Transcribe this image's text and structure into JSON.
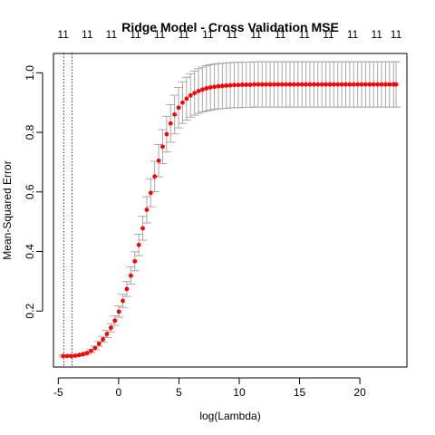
{
  "chart_data": {
    "type": "scatter",
    "title": "Ridge Model - Cross Validation MSE",
    "xlabel": "log(Lambda)",
    "ylabel": "Mean-Squared Error",
    "xlim": [
      -5.4,
      23.9
    ],
    "ylim": [
      0.012,
      1.065
    ],
    "x_ticks": [
      -5,
      0,
      5,
      10,
      15,
      20
    ],
    "y_ticks": [
      0.2,
      0.4,
      0.6,
      0.8,
      1.0
    ],
    "x_tick_labels": [
      "-5",
      "0",
      "5",
      "10",
      "15",
      "20"
    ],
    "y_tick_labels": [
      "0.2",
      "0.4",
      "0.6",
      "0.8",
      "1.0"
    ],
    "top_axis": {
      "positions": [
        -4.6,
        -2.6,
        -0.6,
        1.4,
        3.4,
        5.4,
        7.4,
        9.4,
        11.4,
        13.4,
        15.4,
        17.4,
        19.4,
        21.4,
        23.0
      ],
      "labels": [
        "11",
        "11",
        "11",
        "11",
        "11",
        "11",
        "11",
        "11",
        "11",
        "11",
        "11",
        "11",
        "11",
        "11",
        "11"
      ]
    },
    "vlines": [
      -4.55,
      -3.85
    ],
    "grid": false,
    "series": [
      {
        "point_color": "#ff0000",
        "error_color": "#a8a8a8",
        "x": [
          -4.6,
          -4.27,
          -3.94,
          -3.61,
          -3.28,
          -2.95,
          -2.62,
          -2.29,
          -1.96,
          -1.63,
          -1.3,
          -0.97,
          -0.64,
          -0.31,
          0.02,
          0.35,
          0.68,
          1.01,
          1.34,
          1.67,
          2.0,
          2.33,
          2.66,
          2.99,
          3.32,
          3.65,
          3.98,
          4.31,
          4.64,
          4.97,
          5.3,
          5.63,
          5.96,
          6.29,
          6.62,
          6.95,
          7.28,
          7.61,
          7.94,
          8.27,
          8.6,
          8.93,
          9.26,
          9.59,
          9.92,
          10.25,
          10.58,
          10.91,
          11.24,
          11.57,
          11.9,
          12.23,
          12.56,
          12.89,
          13.22,
          13.55,
          13.88,
          14.21,
          14.54,
          14.87,
          15.2,
          15.53,
          15.86,
          16.19,
          16.52,
          16.85,
          17.18,
          17.51,
          17.84,
          18.17,
          18.5,
          18.83,
          19.16,
          19.49,
          19.82,
          20.15,
          20.48,
          20.81,
          21.14,
          21.47,
          21.8,
          22.13,
          22.46,
          22.79,
          23.0
        ],
        "y": [
          0.049,
          0.049,
          0.049,
          0.05,
          0.052,
          0.055,
          0.059,
          0.066,
          0.076,
          0.09,
          0.105,
          0.123,
          0.144,
          0.168,
          0.198,
          0.234,
          0.274,
          0.319,
          0.367,
          0.422,
          0.478,
          0.54,
          0.597,
          0.652,
          0.705,
          0.752,
          0.794,
          0.83,
          0.86,
          0.883,
          0.9,
          0.913,
          0.924,
          0.932,
          0.939,
          0.944,
          0.948,
          0.951,
          0.953,
          0.955,
          0.956,
          0.957,
          0.958,
          0.959,
          0.959,
          0.96,
          0.96,
          0.96,
          0.961,
          0.961,
          0.961,
          0.961,
          0.961,
          0.961,
          0.961,
          0.961,
          0.961,
          0.961,
          0.961,
          0.961,
          0.961,
          0.961,
          0.961,
          0.961,
          0.961,
          0.961,
          0.961,
          0.961,
          0.961,
          0.961,
          0.961,
          0.961,
          0.961,
          0.961,
          0.961,
          0.961,
          0.961,
          0.961,
          0.961,
          0.961,
          0.961,
          0.961,
          0.961,
          0.961,
          0.961
        ],
        "err": [
          0.003,
          0.003,
          0.003,
          0.003,
          0.003,
          0.004,
          0.004,
          0.005,
          0.006,
          0.008,
          0.01,
          0.012,
          0.014,
          0.016,
          0.019,
          0.022,
          0.025,
          0.029,
          0.032,
          0.036,
          0.04,
          0.044,
          0.047,
          0.051,
          0.054,
          0.057,
          0.06,
          0.063,
          0.065,
          0.068,
          0.07,
          0.072,
          0.073,
          0.074,
          0.075,
          0.075,
          0.076,
          0.076,
          0.076,
          0.076,
          0.076,
          0.076,
          0.076,
          0.076,
          0.076,
          0.076,
          0.076,
          0.076,
          0.076,
          0.076,
          0.076,
          0.076,
          0.076,
          0.076,
          0.076,
          0.076,
          0.076,
          0.076,
          0.076,
          0.076,
          0.076,
          0.076,
          0.076,
          0.076,
          0.076,
          0.076,
          0.076,
          0.076,
          0.076,
          0.076,
          0.076,
          0.076,
          0.076,
          0.076,
          0.076,
          0.076,
          0.076,
          0.076,
          0.076,
          0.076,
          0.076,
          0.076,
          0.076,
          0.076,
          0.076
        ]
      }
    ]
  }
}
